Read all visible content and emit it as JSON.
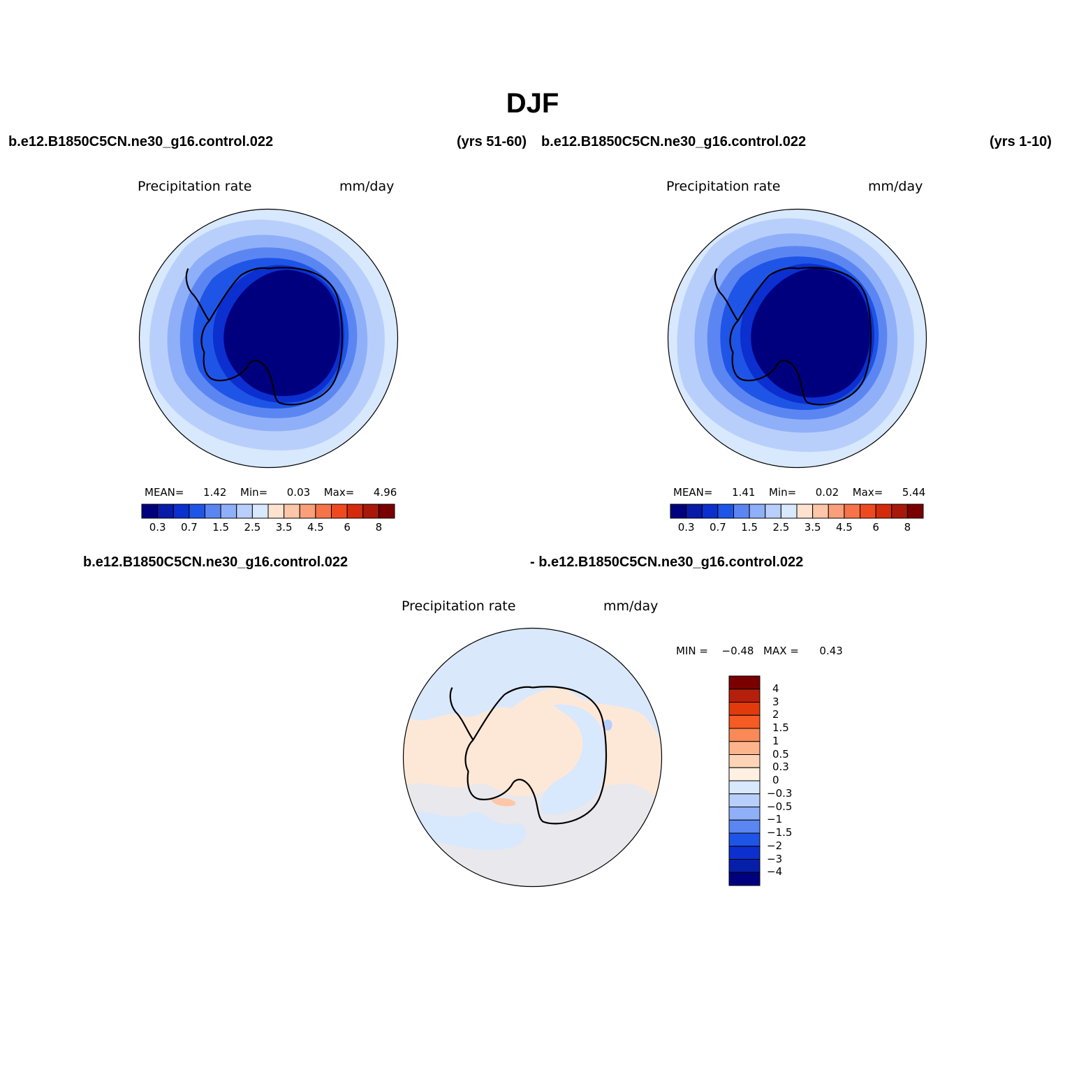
{
  "header": {
    "title": "DJF"
  },
  "panels": [
    {
      "case_name": "b.e12.B1850C5CN.ne30_g16.control.022",
      "years": "(yrs 51-60)",
      "variable": "Precipitation rate",
      "units": "mm/day",
      "stats": {
        "mean_label": "MEAN=",
        "mean": "1.42",
        "min_label": "Min=",
        "min": "0.03",
        "max_label": "Max=",
        "max": "4.96"
      }
    },
    {
      "case_name": "b.e12.B1850C5CN.ne30_g16.control.022",
      "years": "(yrs 1-10)",
      "variable": "Precipitation rate",
      "units": "mm/day",
      "stats": {
        "mean_label": "MEAN=",
        "mean": "1.41",
        "min_label": "Min=",
        "min": "0.02",
        "max_label": "Max=",
        "max": "5.44"
      }
    }
  ],
  "diff_panel": {
    "case_left": "b.e12.B1850C5CN.ne30_g16.control.022",
    "case_right": "- b.e12.B1850C5CN.ne30_g16.control.022",
    "variable": "Precipitation rate",
    "units": "mm/day",
    "stats": {
      "min_label": "MIN =",
      "min": "−0.48",
      "max_label": "MAX =",
      "max": "0.43"
    }
  },
  "colorbars": {
    "abs": {
      "colors": [
        "#00007f",
        "#0a1aa8",
        "#0c2fd0",
        "#1f55e6",
        "#5b86f2",
        "#8fb0f8",
        "#b9cffb",
        "#d8e8fd",
        "#fde3cf",
        "#fdc6a8",
        "#fa9f7a",
        "#f7734a",
        "#ef4a1f",
        "#d42b0c",
        "#a9190a",
        "#7a0000"
      ],
      "tick_labels": [
        "0.3",
        "0.7",
        "1.5",
        "2.5",
        "3.5",
        "4.5",
        "6",
        "8"
      ]
    },
    "diff": {
      "colors_top_to_bottom": [
        "#7a0000",
        "#b5200a",
        "#e23a0c",
        "#f55b22",
        "#f98a57",
        "#fdb48c",
        "#fdd5b6",
        "#fff0e2",
        "#d8e8fd",
        "#b9cffb",
        "#8fb0f8",
        "#5b86f2",
        "#1f55e6",
        "#0c2fd0",
        "#061fa8",
        "#00007f"
      ],
      "tick_labels": [
        "4",
        "3",
        "2",
        "1.5",
        "1",
        "0.5",
        "0.3",
        "0",
        "−0.3",
        "−0.5",
        "−1",
        "−1.5",
        "−2",
        "−3",
        "−4"
      ]
    }
  },
  "map_colors": {
    "ocean_outer": "#d8e8fd",
    "band_1": "#b9cffb",
    "band_2": "#8fb0f8",
    "band_3": "#5b86f2",
    "band_4": "#1f55e6",
    "band_5": "#0c2fd0",
    "interior": "#00007f",
    "diff_pos": "#fde8d8",
    "diff_neg": "#d8e8fd"
  }
}
